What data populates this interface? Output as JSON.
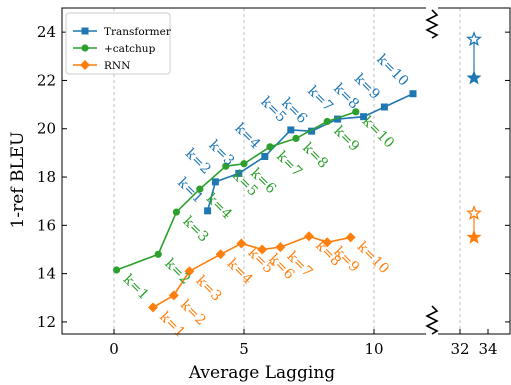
{
  "chart_data": {
    "type": "line",
    "xlabel": "Average Lagging",
    "ylabel": "1-ref BLEU",
    "xlim": [
      -2,
      12
    ],
    "ylim": [
      11.5,
      25
    ],
    "x_ticks": [
      "0",
      "5",
      "10"
    ],
    "x_ticks_right": [
      "32",
      "34"
    ],
    "y_ticks": [
      "12",
      "14",
      "16",
      "18",
      "20",
      "22",
      "24"
    ],
    "grid": "vertical dashed at x=0, 5, 10 and x=32",
    "legend_position": "top-left",
    "series": [
      {
        "name": "Transformer",
        "color": "#1f77b4",
        "marker": "square",
        "x": [
          3.6,
          3.9,
          4.8,
          5.8,
          6.8,
          7.6,
          8.6,
          9.6,
          10.4,
          11.5
        ],
        "y": [
          16.6,
          17.8,
          18.15,
          18.85,
          19.95,
          19.9,
          20.4,
          20.5,
          20.9,
          21.45
        ],
        "k_labels": [
          "k=1",
          "k=2",
          "k=3",
          "k=4",
          "k=5",
          "k=6",
          "k=7",
          "k=8",
          "k=9",
          "k=10"
        ]
      },
      {
        "name": "+catchup",
        "color": "#2ca02c",
        "marker": "circle",
        "x": [
          0.1,
          1.7,
          2.4,
          3.3,
          4.3,
          5.0,
          6.0,
          7.0,
          8.2,
          9.3
        ],
        "y": [
          14.15,
          14.8,
          16.55,
          17.5,
          18.45,
          18.55,
          19.25,
          19.6,
          20.3,
          20.7
        ],
        "k_labels": [
          "k=1",
          "k=2",
          "k=3",
          "k=4",
          "k=5",
          "k=6",
          "k=7",
          "k=8",
          "k=9",
          "k=10"
        ]
      },
      {
        "name": "RNN",
        "color": "#ff7f0e",
        "marker": "diamond",
        "x": [
          1.5,
          2.3,
          2.9,
          4.1,
          4.9,
          5.7,
          6.4,
          7.5,
          8.2,
          9.1
        ],
        "y": [
          12.6,
          13.1,
          14.1,
          14.8,
          15.25,
          15.0,
          15.1,
          15.55,
          15.3,
          15.5
        ],
        "k_labels": [
          "k=1",
          "k=2",
          "k=3",
          "k=4",
          "k=5",
          "k=6",
          "k=7",
          "k=8",
          "k=9",
          "k=10"
        ]
      }
    ],
    "offline_points": [
      {
        "series": "Transformer",
        "x": 33,
        "filled_star": 22.1,
        "open_star": 23.7
      },
      {
        "series": "RNN",
        "x": 33,
        "filled_star": 15.5,
        "open_star": 16.5
      }
    ]
  }
}
